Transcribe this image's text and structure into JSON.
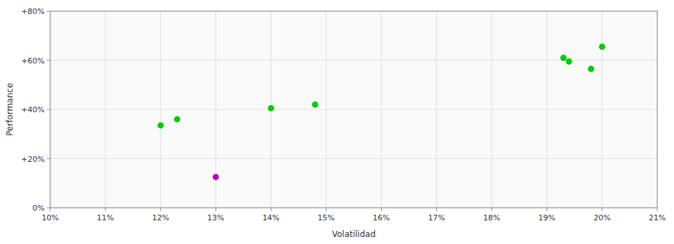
{
  "chart_data": {
    "type": "scatter",
    "xlabel": "Volatilidad",
    "ylabel": "Performance",
    "xlim": [
      0.1,
      0.21
    ],
    "ylim": [
      0.0,
      0.8
    ],
    "xticks": [
      {
        "value": 0.1,
        "label": "10%"
      },
      {
        "value": 0.11,
        "label": "11%"
      },
      {
        "value": 0.12,
        "label": "12%"
      },
      {
        "value": 0.13,
        "label": "13%"
      },
      {
        "value": 0.14,
        "label": "14%"
      },
      {
        "value": 0.15,
        "label": "15%"
      },
      {
        "value": 0.16,
        "label": "16%"
      },
      {
        "value": 0.17,
        "label": "17%"
      },
      {
        "value": 0.18,
        "label": "18%"
      },
      {
        "value": 0.19,
        "label": "19%"
      },
      {
        "value": 0.2,
        "label": "20%"
      },
      {
        "value": 0.21,
        "label": "21%"
      }
    ],
    "yticks": [
      {
        "value": 0.0,
        "label": "0%"
      },
      {
        "value": 0.2,
        "label": "+20%"
      },
      {
        "value": 0.4,
        "label": "+40%"
      },
      {
        "value": 0.6,
        "label": "+60%"
      },
      {
        "value": 0.8,
        "label": "+80%"
      }
    ],
    "grid": true,
    "series": [
      {
        "color": "#00cc00",
        "x": [
          0.12,
          0.123,
          0.14,
          0.148,
          0.193,
          0.194,
          0.198,
          0.2
        ],
        "values": [
          0.335,
          0.36,
          0.405,
          0.42,
          0.61,
          0.595,
          0.565,
          0.655
        ]
      },
      {
        "color": "#bb00bb",
        "x": [
          0.13
        ],
        "values": [
          0.125
        ]
      }
    ]
  }
}
